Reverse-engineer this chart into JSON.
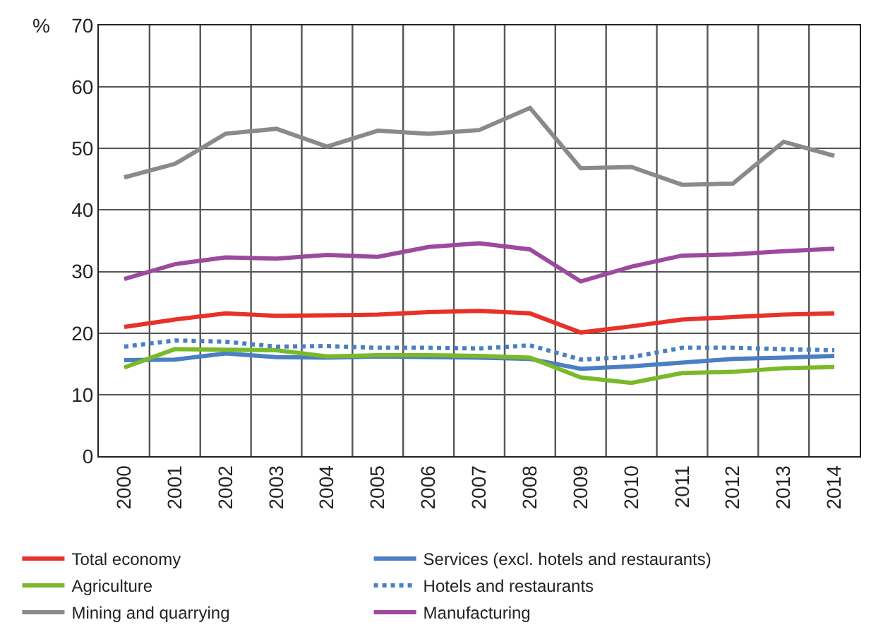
{
  "chart_data": {
    "type": "line",
    "ylabel": "%",
    "categories": [
      "2000",
      "2001",
      "2002",
      "2003",
      "2004",
      "2005",
      "2006",
      "2007",
      "2008",
      "2009",
      "2010",
      "2011",
      "2012",
      "2013",
      "2014"
    ],
    "ylim": [
      0,
      70
    ],
    "yticks": [
      0,
      10,
      20,
      30,
      40,
      50,
      60,
      70
    ],
    "grid": true,
    "legend": "bottom",
    "marker": "none",
    "line_style": "solid",
    "series": [
      {
        "name": "Total economy",
        "color": "#e8312a",
        "values": [
          21,
          22.2,
          23.2,
          22.8,
          22.9,
          23,
          23.4,
          23.6,
          23.2,
          20.1,
          21.1,
          22.2,
          22.6,
          23,
          23.2
        ]
      },
      {
        "name": "Services (excl. hotels and restaurants)",
        "color": "#4a7fc4",
        "values": [
          15.6,
          15.7,
          16.7,
          16.1,
          16,
          16.2,
          16.1,
          16,
          15.8,
          14.2,
          14.6,
          15.2,
          15.8,
          16,
          16.3
        ]
      },
      {
        "name": "Agriculture",
        "color": "#7ab929",
        "values": [
          14.4,
          17.4,
          17.3,
          17.2,
          16.2,
          16.4,
          16.4,
          16.3,
          16,
          12.8,
          11.9,
          13.5,
          13.7,
          14.3,
          14.5
        ]
      },
      {
        "name": "Hotels and restaurants",
        "color": "#4a7fc4",
        "line_style": "dotted",
        "values": [
          17.8,
          18.8,
          18.6,
          17.8,
          17.9,
          17.6,
          17.6,
          17.5,
          18,
          15.7,
          16.1,
          17.6,
          17.6,
          17.4,
          17.2
        ]
      },
      {
        "name": "Mining and quarrying",
        "color": "#8a8a8a",
        "values": [
          45.3,
          47.5,
          52.4,
          53.2,
          50.3,
          52.9,
          52.4,
          53,
          56.6,
          46.8,
          47,
          44.1,
          44.3,
          51.1,
          48.8
        ]
      },
      {
        "name": "Manufacturing",
        "color": "#9b4a9e",
        "values": [
          28.8,
          31.2,
          32.3,
          32.1,
          32.7,
          32.4,
          34,
          34.6,
          33.6,
          28.4,
          30.8,
          32.6,
          32.8,
          33.3,
          33.7
        ]
      }
    ]
  }
}
